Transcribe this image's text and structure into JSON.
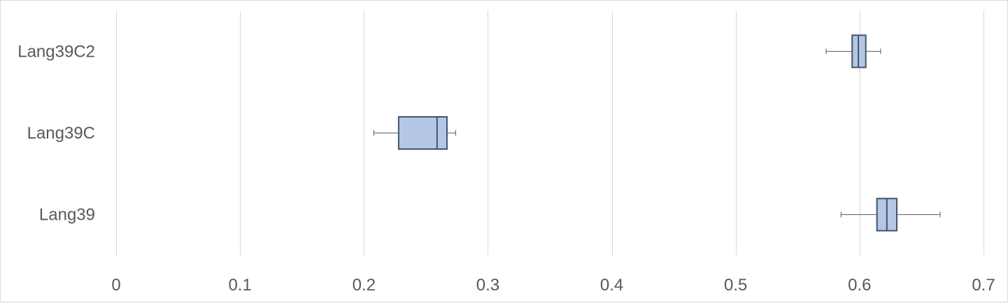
{
  "chart_data": {
    "type": "boxplot",
    "orientation": "horizontal",
    "title": "",
    "xlabel": "",
    "ylabel": "",
    "xlim": [
      0,
      0.7
    ],
    "x_ticks": [
      0,
      0.1,
      0.2,
      0.3,
      0.4,
      0.5,
      0.6,
      0.7
    ],
    "x_tick_labels": [
      "0",
      "0.1",
      "0.2",
      "0.3",
      "0.4",
      "0.5",
      "0.6",
      "0.7"
    ],
    "grid": "vertical",
    "legend": "none",
    "categories": [
      "Lang39C2",
      "Lang39C",
      "Lang39"
    ],
    "boxes": [
      {
        "category": "Lang39C2",
        "min": 0.573,
        "q1": 0.594,
        "median": 0.599,
        "q3": 0.605,
        "max": 0.617
      },
      {
        "category": "Lang39C",
        "min": 0.208,
        "q1": 0.228,
        "median": 0.259,
        "q3": 0.267,
        "max": 0.274
      },
      {
        "category": "Lang39",
        "min": 0.585,
        "q1": 0.614,
        "median": 0.622,
        "q3": 0.63,
        "max": 0.665
      }
    ],
    "colors": {
      "box_fill": "#b4c7e7",
      "box_stroke": "#44546a",
      "whisker": "#595959",
      "grid": "#d9d9d9",
      "text": "#595959"
    }
  }
}
